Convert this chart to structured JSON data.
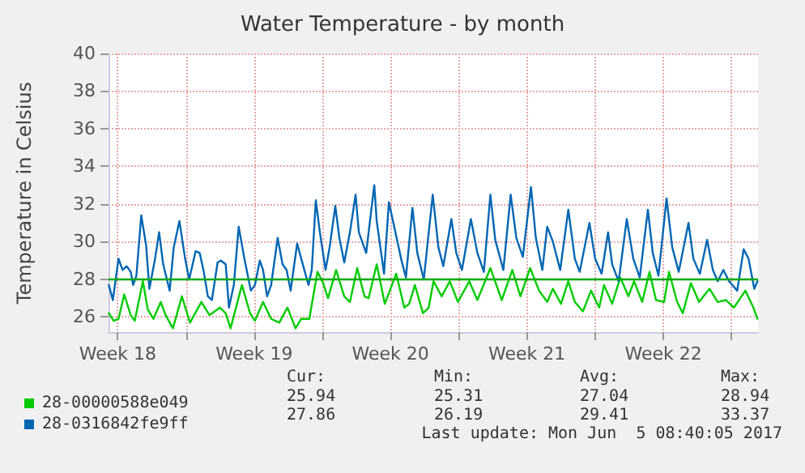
{
  "chart_data": {
    "type": "line",
    "title": "Water Temperature - by month",
    "ylabel": "Temperature in Celsius",
    "xlim": [
      "2017-05-03T00:40",
      "2017-06-05T08:40"
    ],
    "xticks": [
      {
        "value": "2017-05-03T12:00",
        "label": "Week 18"
      },
      {
        "value": "2017-05-07T00:00",
        "label": null
      },
      {
        "value": "2017-05-10T12:00",
        "label": "Week 19"
      },
      {
        "value": "2017-05-14T00:00",
        "label": null
      },
      {
        "value": "2017-05-17T12:00",
        "label": "Week 20"
      },
      {
        "value": "2017-05-21T00:00",
        "label": null
      },
      {
        "value": "2017-05-24T12:00",
        "label": "Week 21"
      },
      {
        "value": "2017-05-28T00:00",
        "label": null
      },
      {
        "value": "2017-05-31T12:00",
        "label": "Week 22"
      },
      {
        "value": "2017-06-04T00:00",
        "label": null
      }
    ],
    "ylim": [
      25.2,
      40
    ],
    "yticks": [
      26,
      28,
      30,
      32,
      34,
      36,
      38,
      40
    ],
    "grid": true,
    "legend": "bottom left",
    "marker": "none",
    "line_style": "solid",
    "ref_lines": [
      {
        "axis": "y",
        "value": 28,
        "color": "#00aa00"
      }
    ],
    "annotations": [
      "Cur:",
      "Min:",
      "Avg:",
      "Max:",
      "25.94",
      "25.31",
      "27.04",
      "28.94",
      "27.86",
      "26.19",
      "29.41",
      "33.37",
      "Last update: Mon Jun  5 08:40:05 2017"
    ],
    "series": [
      {
        "name": "28-00000588e049",
        "color": "#00cc00",
        "x": [
          "2017-05-03T01:00",
          "2017-05-03T07:00",
          "2017-05-03T13:00",
          "2017-05-03T20:00",
          "2017-05-04T04:00",
          "2017-05-04T09:00",
          "2017-05-04T19:00",
          "2017-05-05T01:00",
          "2017-05-05T08:00",
          "2017-05-05T17:00",
          "2017-05-05T23:00",
          "2017-05-06T08:00",
          "2017-05-06T19:00",
          "2017-05-07T05:00",
          "2017-05-07T19:00",
          "2017-05-08T05:00",
          "2017-05-08T18:00",
          "2017-05-09T01:00",
          "2017-05-09T07:00",
          "2017-05-09T21:00",
          "2017-05-10T07:00",
          "2017-05-10T13:00",
          "2017-05-10T23:00",
          "2017-05-11T09:00",
          "2017-05-11T19:00",
          "2017-05-12T05:00",
          "2017-05-12T15:00",
          "2017-05-12T22:00",
          "2017-05-13T08:00",
          "2017-05-13T18:00",
          "2017-05-14T01:00",
          "2017-05-14T07:00",
          "2017-05-14T17:00",
          "2017-05-15T03:00",
          "2017-05-15T10:00",
          "2017-05-15T19:00",
          "2017-05-16T04:00",
          "2017-05-16T09:00",
          "2017-05-16T19:00",
          "2017-05-17T05:00",
          "2017-05-17T19:00",
          "2017-05-18T05:00",
          "2017-05-18T11:00",
          "2017-05-18T18:00",
          "2017-05-19T04:00",
          "2017-05-19T11:00",
          "2017-05-19T17:00",
          "2017-05-20T03:00",
          "2017-05-20T13:00",
          "2017-05-20T23:00",
          "2017-05-21T13:00",
          "2017-05-21T23:00",
          "2017-05-22T15:00",
          "2017-05-23T05:00",
          "2017-05-23T18:00",
          "2017-05-24T04:00",
          "2017-05-24T16:00",
          "2017-05-25T03:00",
          "2017-05-25T13:00",
          "2017-05-25T20:00",
          "2017-05-26T06:00",
          "2017-05-26T15:00",
          "2017-05-26T23:00",
          "2017-05-27T09:00",
          "2017-05-27T19:00",
          "2017-05-28T05:00",
          "2017-05-28T11:00",
          "2017-05-28T21:00",
          "2017-05-29T07:00",
          "2017-05-29T17:00",
          "2017-05-30T00:00",
          "2017-05-30T10:00",
          "2017-05-30T19:00",
          "2017-05-31T03:00",
          "2017-05-31T13:00",
          "2017-05-31T19:00",
          "2017-06-01T05:00",
          "2017-06-01T12:00",
          "2017-06-01T22:00",
          "2017-06-02T08:00",
          "2017-06-02T21:00",
          "2017-06-03T07:00",
          "2017-06-03T17:00",
          "2017-06-04T03:00",
          "2017-06-04T17:00",
          "2017-06-05T03:00",
          "2017-06-05T08:00"
        ],
        "values": [
          26.2,
          25.8,
          25.9,
          27.2,
          26.1,
          25.8,
          27.9,
          26.4,
          25.9,
          26.8,
          26.1,
          25.4,
          27.1,
          25.7,
          26.8,
          26.1,
          26.5,
          26.2,
          25.4,
          27.7,
          26.2,
          25.8,
          26.8,
          25.9,
          25.7,
          26.5,
          25.4,
          25.9,
          25.9,
          28.4,
          27.8,
          27.0,
          28.5,
          27.1,
          26.8,
          28.6,
          27.1,
          27.0,
          28.8,
          26.7,
          28.3,
          26.5,
          26.7,
          27.7,
          26.2,
          26.5,
          27.9,
          27.1,
          27.9,
          26.8,
          27.9,
          26.9,
          28.6,
          26.9,
          28.5,
          27.1,
          28.6,
          27.4,
          26.8,
          27.5,
          26.7,
          27.9,
          26.8,
          26.3,
          27.4,
          26.5,
          27.7,
          26.7,
          28.1,
          27.1,
          27.9,
          26.8,
          28.4,
          26.9,
          26.8,
          28.4,
          26.8,
          26.2,
          27.8,
          26.8,
          27.5,
          26.8,
          26.9,
          26.5,
          27.4,
          26.5,
          25.9
        ]
      },
      {
        "name": "28-0316842fe9ff",
        "color": "#0066b3",
        "x": [
          "2017-05-03T01:00",
          "2017-05-03T06:00",
          "2017-05-03T13:00",
          "2017-05-03T18:00",
          "2017-05-03T23:00",
          "2017-05-04T04:00",
          "2017-05-04T07:00",
          "2017-05-04T11:00",
          "2017-05-04T17:00",
          "2017-05-04T23:00",
          "2017-05-05T03:00",
          "2017-05-05T10:00",
          "2017-05-05T15:00",
          "2017-05-05T20:00",
          "2017-05-06T04:00",
          "2017-05-06T09:00",
          "2017-05-06T16:00",
          "2017-05-06T23:00",
          "2017-05-07T04:00",
          "2017-05-07T12:00",
          "2017-05-07T17:00",
          "2017-05-07T22:00",
          "2017-05-08T03:00",
          "2017-05-08T08:00",
          "2017-05-08T15:00",
          "2017-05-08T19:00",
          "2017-05-09T01:00",
          "2017-05-09T05:00",
          "2017-05-09T11:00",
          "2017-05-09T17:00",
          "2017-05-10T00:00",
          "2017-05-10T08:00",
          "2017-05-10T13:00",
          "2017-05-10T19:00",
          "2017-05-10T23:00",
          "2017-05-11T04:00",
          "2017-05-11T09:00",
          "2017-05-11T17:00",
          "2017-05-11T23:00",
          "2017-05-12T04:00",
          "2017-05-12T09:00",
          "2017-05-12T17:00",
          "2017-05-12T22:00",
          "2017-05-13T07:00",
          "2017-05-13T11:00",
          "2017-05-13T16:00",
          "2017-05-13T21:00",
          "2017-05-14T04:00",
          "2017-05-14T09:00",
          "2017-05-14T16:00",
          "2017-05-14T21:00",
          "2017-05-15T03:00",
          "2017-05-15T10:00",
          "2017-05-15T17:00",
          "2017-05-15T21:00",
          "2017-05-16T06:00",
          "2017-05-16T16:00",
          "2017-05-16T19:00",
          "2017-05-17T04:00",
          "2017-05-17T10:00",
          "2017-05-18T01:00",
          "2017-05-18T07:00",
          "2017-05-18T15:00",
          "2017-05-18T21:00",
          "2017-05-19T05:00",
          "2017-05-19T16:00",
          "2017-05-19T23:00",
          "2017-05-20T05:00",
          "2017-05-20T15:00",
          "2017-05-20T21:00",
          "2017-05-21T04:00",
          "2017-05-21T15:00",
          "2017-05-21T23:00",
          "2017-05-22T07:00",
          "2017-05-22T15:00",
          "2017-05-22T21:00",
          "2017-05-23T07:00",
          "2017-05-23T16:00",
          "2017-05-23T23:00",
          "2017-05-24T07:00",
          "2017-05-24T17:00",
          "2017-05-24T23:00",
          "2017-05-25T07:00",
          "2017-05-25T13:00",
          "2017-05-25T20:00",
          "2017-05-26T05:00",
          "2017-05-26T15:00",
          "2017-05-26T23:00",
          "2017-05-27T05:00",
          "2017-05-27T17:00",
          "2017-05-28T00:00",
          "2017-05-28T08:00",
          "2017-05-28T16:00",
          "2017-05-28T21:00",
          "2017-05-29T05:00",
          "2017-05-29T15:00",
          "2017-05-29T23:00",
          "2017-05-30T07:00",
          "2017-05-30T17:00",
          "2017-05-30T23:00",
          "2017-05-31T06:00",
          "2017-05-31T16:00",
          "2017-05-31T23:00",
          "2017-06-01T07:00",
          "2017-06-01T19:00",
          "2017-06-02T01:00",
          "2017-06-02T09:00",
          "2017-06-02T18:00",
          "2017-06-03T01:00",
          "2017-06-03T07:00",
          "2017-06-03T14:00",
          "2017-06-03T21:00",
          "2017-06-04T07:00",
          "2017-06-04T15:00",
          "2017-06-04T21:00",
          "2017-06-05T04:00",
          "2017-06-05T08:00"
        ],
        "values": [
          27.7,
          26.9,
          29.1,
          28.5,
          28.7,
          28.4,
          27.7,
          28.2,
          31.4,
          29.8,
          27.5,
          29.1,
          30.5,
          28.8,
          27.4,
          29.7,
          31.1,
          29.1,
          28.0,
          29.5,
          29.4,
          28.4,
          27.1,
          26.9,
          28.9,
          29.0,
          28.8,
          26.5,
          27.7,
          30.8,
          29.1,
          27.4,
          27.7,
          29.0,
          28.5,
          27.1,
          27.7,
          30.2,
          28.8,
          28.5,
          27.4,
          29.9,
          29.1,
          27.7,
          28.5,
          32.2,
          30.5,
          28.5,
          29.7,
          31.9,
          30.2,
          28.9,
          30.5,
          32.5,
          30.5,
          29.4,
          33.0,
          31.1,
          28.3,
          32.1,
          29.1,
          28.1,
          31.8,
          29.4,
          28.0,
          32.5,
          29.7,
          28.7,
          31.2,
          29.4,
          28.5,
          31.2,
          29.4,
          28.4,
          32.5,
          30.1,
          28.5,
          32.5,
          30.2,
          29.2,
          32.9,
          30.2,
          28.5,
          30.8,
          30.0,
          28.5,
          31.7,
          29.1,
          28.4,
          31.0,
          29.1,
          28.3,
          30.5,
          28.8,
          27.9,
          31.2,
          29.1,
          28.1,
          31.7,
          29.4,
          28.2,
          32.3,
          29.7,
          28.4,
          31.0,
          29.1,
          28.3,
          30.1,
          28.5,
          27.9,
          28.5,
          27.9,
          27.4,
          29.6,
          29.1,
          27.5,
          27.9
        ]
      }
    ]
  }
}
